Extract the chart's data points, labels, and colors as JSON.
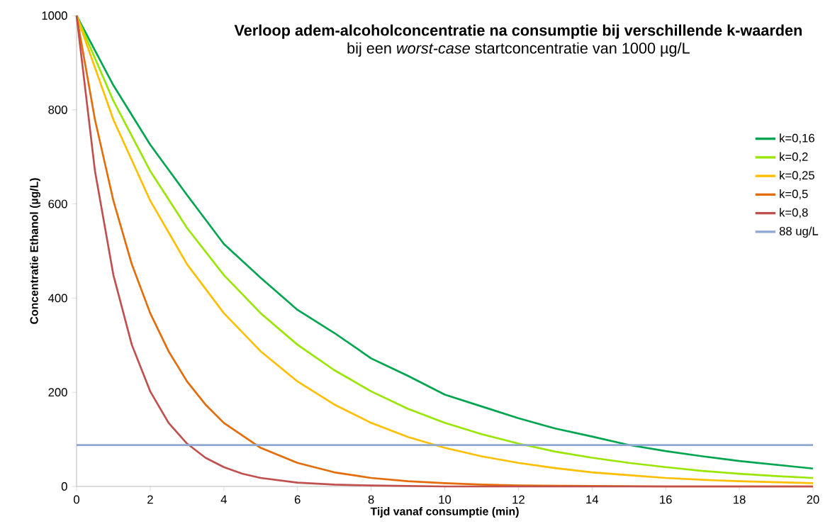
{
  "chart_data": {
    "type": "line",
    "title": "Verloop adem-alcoholconcentratie na consumptie bij verschillende k-waarden",
    "subtitle": "bij een *worst-case* startconcentratie van 1000 µg/L",
    "xlabel": "Tijd vanaf consumptie (min)",
    "ylabel": "Concentratie Ethanol  (µg/L)",
    "xlim": [
      0,
      20
    ],
    "ylim": [
      0,
      1000
    ],
    "xticks": [
      0,
      2,
      4,
      6,
      8,
      10,
      12,
      14,
      16,
      18,
      20
    ],
    "yticks": [
      0,
      200,
      400,
      600,
      800,
      1000
    ],
    "grid": false,
    "legend": "right",
    "series": [
      {
        "name": "k=0,16",
        "color": "#00a550",
        "x": [
          0,
          1,
          2,
          3,
          4,
          5,
          6,
          7,
          8,
          9,
          10,
          11,
          12,
          13,
          14,
          15,
          16,
          17,
          18,
          19,
          20
        ],
        "values": [
          1000,
          852,
          726,
          619,
          515,
          443,
          375,
          326,
          272,
          235,
          195,
          170,
          145,
          123,
          106,
          88,
          75,
          64,
          54,
          46,
          38
        ]
      },
      {
        "name": "k=0,2",
        "color": "#99e600",
        "x": [
          0,
          1,
          2,
          3,
          4,
          5,
          6,
          7,
          8,
          9,
          10,
          11,
          12,
          13,
          14,
          15,
          16,
          17,
          18,
          19,
          20
        ],
        "values": [
          1000,
          819,
          670,
          549,
          449,
          368,
          301,
          247,
          202,
          165,
          135,
          111,
          91,
          74,
          61,
          50,
          41,
          33,
          27,
          22,
          18
        ]
      },
      {
        "name": "k=0,25",
        "color": "#ffbf00",
        "x": [
          0,
          1,
          2,
          3,
          4,
          5,
          6,
          7,
          8,
          9,
          10,
          11,
          12,
          13,
          14,
          15,
          16,
          17,
          18,
          19,
          20
        ],
        "values": [
          1000,
          779,
          607,
          472,
          368,
          287,
          223,
          174,
          135,
          105,
          82,
          64,
          50,
          39,
          30,
          24,
          18,
          14,
          11,
          9,
          7
        ]
      },
      {
        "name": "k=0,5",
        "color": "#e46c0a",
        "x": [
          0,
          0.5,
          1,
          1.5,
          2,
          2.5,
          3,
          3.5,
          4,
          5,
          6,
          7,
          8,
          9,
          10,
          11,
          12,
          14,
          16,
          18,
          20
        ],
        "values": [
          1000,
          779,
          607,
          472,
          368,
          287,
          223,
          174,
          135,
          82,
          50,
          30,
          18,
          11,
          7,
          4,
          2,
          1,
          0,
          0,
          0
        ]
      },
      {
        "name": "k=0,8",
        "color": "#c0504d",
        "x": [
          0,
          0.5,
          1,
          1.5,
          2,
          2.5,
          3,
          3.5,
          4,
          4.5,
          5,
          6,
          7,
          8,
          10,
          12,
          14,
          16,
          18,
          20
        ],
        "values": [
          1000,
          670,
          449,
          301,
          202,
          135,
          91,
          61,
          41,
          27,
          18,
          8,
          4,
          2,
          0,
          0,
          0,
          0,
          0,
          0
        ]
      },
      {
        "name": "88 ug/L",
        "color": "#8ea8d2",
        "x": [
          0,
          20
        ],
        "values": [
          88,
          88
        ]
      }
    ]
  }
}
